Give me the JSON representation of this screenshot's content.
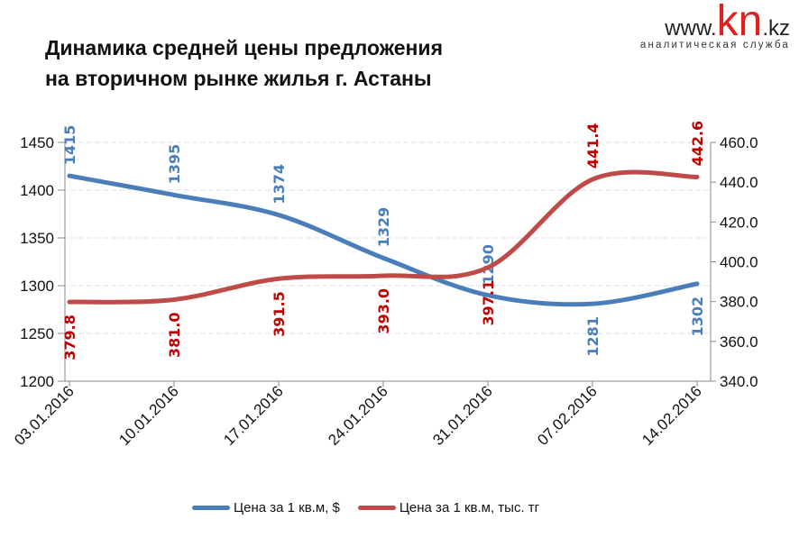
{
  "title_line1": "Динамика средней  цены предложения",
  "title_line2": "на вторичном рынке жилья  г. Астаны",
  "logo": {
    "www": "www.",
    "kn": "kn",
    "kz": ".kz",
    "sub": "аналитическая служба"
  },
  "chart_data": {
    "type": "line",
    "categories": [
      "03.01.2016",
      "10.01.2016",
      "17.01.2016",
      "24.01.2016",
      "31.01.2016",
      "07.02.2016",
      "14.02.2016"
    ],
    "series": [
      {
        "name": "Цена за 1 кв.м, $",
        "axis": "left",
        "color": "#4a7ebb",
        "values": [
          1415,
          1395,
          1374,
          1329,
          1290,
          1281,
          1302
        ],
        "labels": [
          "1415",
          "1395",
          "1374",
          "1329",
          "1290",
          "1281",
          "1302"
        ]
      },
      {
        "name": "Цена за 1 кв.м, тыс. тг",
        "axis": "right",
        "color": "#be4b48",
        "label_color": "#c00000",
        "values": [
          379.8,
          381.0,
          391.5,
          393.0,
          397.1,
          441.4,
          442.6
        ],
        "labels": [
          "379.8",
          "381.0",
          "391.5",
          "393.0",
          "397.1",
          "441.4",
          "442.6"
        ]
      }
    ],
    "left_axis": {
      "min": 1200,
      "max": 1450,
      "ticks": [
        "1200",
        "1250",
        "1300",
        "1350",
        "1400",
        "1450"
      ]
    },
    "right_axis": {
      "min": 340,
      "max": 460,
      "ticks": [
        "340.0",
        "360.0",
        "380.0",
        "400.0",
        "420.0",
        "440.0",
        "460.0"
      ]
    },
    "grid": true,
    "legend": "bottom"
  }
}
